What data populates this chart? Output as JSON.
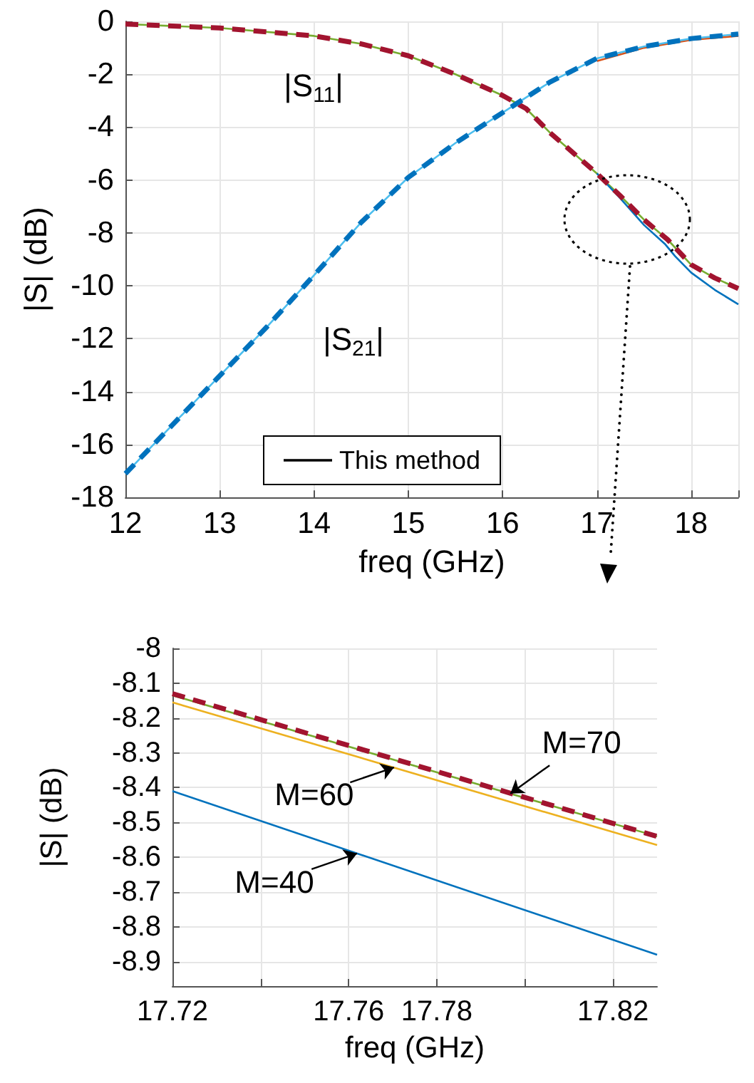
{
  "chart_data": [
    {
      "type": "line",
      "xlabel": "freq (GHz)",
      "ylabel": "|S| (dB)",
      "xlim": [
        12,
        18.5
      ],
      "ylim": [
        -18,
        0
      ],
      "xticks": [
        12,
        13,
        14,
        15,
        16,
        17,
        18
      ],
      "yticks": [
        -18,
        -16,
        -14,
        -12,
        -10,
        -8,
        -6,
        -4,
        -2,
        0
      ],
      "grid": true,
      "legend": "bottom",
      "line_style": "solid",
      "series": [
        {
          "color": "#77ac30",
          "x": [
            12,
            13,
            14,
            14.5,
            15,
            15.5,
            16,
            16.25,
            16.5,
            17,
            17.25,
            17.5,
            17.75,
            18,
            18.25,
            18.5
          ],
          "values": [
            -0.1,
            -0.25,
            -0.55,
            -0.85,
            -1.3,
            -2.0,
            -2.8,
            -3.3,
            -4.2,
            -5.75,
            -6.6,
            -7.5,
            -8.25,
            -9.2,
            -9.7,
            -10.1
          ]
        },
        {
          "color": "#0072bd",
          "x": [
            17,
            17.25,
            17.5,
            17.72,
            17.83,
            18,
            18.25,
            18.5
          ],
          "values": [
            -5.75,
            -6.7,
            -7.7,
            -8.41,
            -8.88,
            -9.5,
            -10.15,
            -10.7
          ]
        },
        {
          "color": "#a2142f",
          "line_style": "dashed",
          "x": [
            12,
            13,
            14,
            14.5,
            15,
            15.5,
            16,
            16.25,
            16.5,
            17,
            17.25,
            17.5,
            17.75,
            18,
            18.25,
            18.5
          ],
          "values": [
            -0.1,
            -0.25,
            -0.55,
            -0.85,
            -1.3,
            -2.0,
            -2.8,
            -3.3,
            -4.2,
            -5.75,
            -6.6,
            -7.5,
            -8.25,
            -9.2,
            -9.7,
            -10.1
          ]
        },
        {
          "color": "#d95319",
          "x": [
            17,
            17.5,
            18,
            18.5
          ],
          "values": [
            -1.5,
            -1.0,
            -0.7,
            -0.55
          ]
        },
        {
          "color": "#4dbeee",
          "x": [
            12,
            12.5,
            13,
            13.5,
            14,
            14.5,
            15,
            15.5,
            16,
            16.5,
            17,
            17.5,
            18,
            18.5
          ],
          "values": [
            -17.1,
            -15.25,
            -13.4,
            -11.55,
            -9.6,
            -7.6,
            -5.9,
            -4.6,
            -3.45,
            -2.3,
            -1.4,
            -0.95,
            -0.65,
            -0.48
          ]
        },
        {
          "color": "#0072bd",
          "line_style": "dashed",
          "x": [
            12,
            12.5,
            13,
            13.5,
            14,
            14.5,
            15,
            15.5,
            16,
            16.5,
            17,
            17.5,
            18,
            18.5
          ],
          "values": [
            -17.1,
            -15.25,
            -13.4,
            -11.55,
            -9.6,
            -7.6,
            -5.9,
            -4.6,
            -3.45,
            -2.3,
            -1.4,
            -0.95,
            -0.65,
            -0.48
          ]
        },
        {
          "name": "This method",
          "color": "#000000"
        }
      ],
      "annotations": [
        "|S$_{11}$|",
        "|S$_{21}$|"
      ]
    },
    {
      "type": "line",
      "xlabel": "freq (GHz)",
      "ylabel": "|S| (dB)",
      "xlim": [
        17.72,
        17.83
      ],
      "ylim": [
        -8.97,
        -8
      ],
      "grid": true,
      "line_style": "solid",
      "xticks": [
        {
          "value": 17.72,
          "label": "17.72"
        },
        {
          "value": 17.74,
          "label": null
        },
        {
          "value": 17.76,
          "label": "17.76"
        },
        {
          "value": 17.78,
          "label": "17.78"
        },
        {
          "value": 17.8,
          "label": null
        },
        {
          "value": 17.82,
          "label": "17.82"
        }
      ],
      "yticks": [
        -8.9,
        -8.8,
        -8.7,
        -8.6,
        -8.5,
        -8.4,
        -8.3,
        -8.2,
        -8.1,
        -8
      ],
      "series": [
        {
          "color": "#0072bd",
          "x": [
            17.72,
            17.83
          ],
          "values": [
            -8.41,
            -8.88
          ]
        },
        {
          "color": "#edb120",
          "x": [
            17.72,
            17.83
          ],
          "values": [
            -8.155,
            -8.565
          ]
        },
        {
          "color": "#77ac30",
          "x": [
            17.72,
            17.83
          ],
          "values": [
            -8.135,
            -8.54
          ]
        },
        {
          "color": "#a2142f",
          "line_style": "dashed",
          "x": [
            17.72,
            17.83
          ],
          "values": [
            -8.13,
            -8.54
          ]
        }
      ],
      "annotations": [
        {
          "text": "M=70",
          "x": 17.7967,
          "y": -8.417
        },
        {
          "text": "M=60",
          "x": 17.7703,
          "y": -8.342
        },
        {
          "text": "M=40",
          "x": 17.7619,
          "y": -8.589
        }
      ]
    }
  ]
}
